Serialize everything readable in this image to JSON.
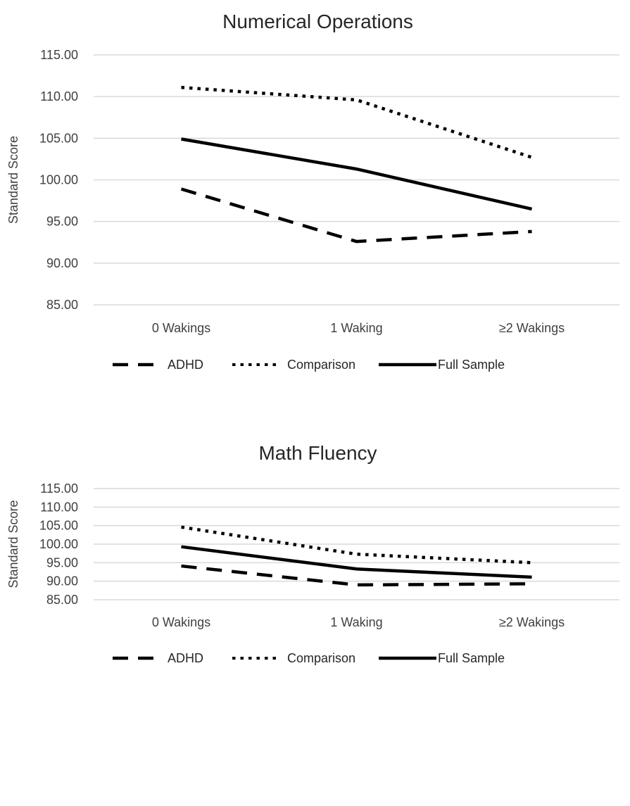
{
  "chart_data": [
    {
      "type": "line",
      "title": "Numerical Operations",
      "ylabel": "Standard Score",
      "xlabel": "",
      "categories": [
        "0 Wakings",
        "1 Waking",
        "≥2 Wakings"
      ],
      "ylim": [
        85,
        115
      ],
      "yticks": [
        "115.00",
        "110.00",
        "105.00",
        "100.00",
        "95.00",
        "90.00",
        "85.00"
      ],
      "grid": true,
      "legend": "bottom",
      "series": [
        {
          "name": "ADHD",
          "style": "dashed",
          "values": [
            98.9,
            92.6,
            93.8
          ]
        },
        {
          "name": "Comparison",
          "style": "dotted",
          "values": [
            111.1,
            109.6,
            102.7
          ]
        },
        {
          "name": "Full Sample",
          "style": "solid",
          "values": [
            104.9,
            101.3,
            96.5
          ]
        }
      ]
    },
    {
      "type": "line",
      "title": "Math Fluency",
      "ylabel": "Standard Score",
      "xlabel": "",
      "categories": [
        "0 Wakings",
        "1 Waking",
        "≥2 Wakings"
      ],
      "ylim": [
        85,
        115
      ],
      "yticks": [
        "115.00",
        "110.00",
        "105.00",
        "100.00",
        "95.00",
        "90.00",
        "85.00"
      ],
      "grid": true,
      "legend": "bottom",
      "series": [
        {
          "name": "ADHD",
          "style": "dashed",
          "values": [
            94.1,
            89.0,
            89.3
          ]
        },
        {
          "name": "Comparison",
          "style": "dotted",
          "values": [
            104.6,
            97.3,
            95.0
          ]
        },
        {
          "name": "Full Sample",
          "style": "solid",
          "values": [
            99.3,
            93.3,
            91.1
          ]
        }
      ]
    }
  ]
}
